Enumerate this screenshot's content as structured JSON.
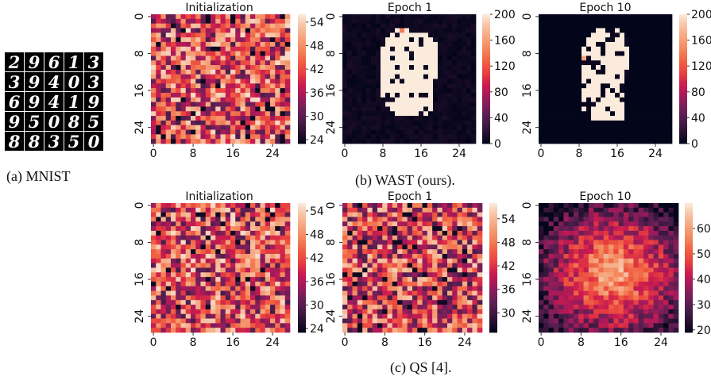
{
  "figure": {
    "captions": {
      "a": "(a) MNIST",
      "b": "(b) WAST (ours).",
      "c": "(c) QS [4]."
    },
    "mnist_digits": [
      [
        "2",
        "9",
        "6",
        "1",
        "3"
      ],
      [
        "3",
        "9",
        "4",
        "0",
        "3"
      ],
      [
        "6",
        "9",
        "4",
        "1",
        "9"
      ],
      [
        "9",
        "5",
        "0",
        "8",
        "5"
      ],
      [
        "8",
        "8",
        "3",
        "5",
        "0"
      ]
    ]
  },
  "colors": {
    "colormap": "rocket",
    "stops": [
      "#03051a",
      "#2b1131",
      "#4c1d4b",
      "#711f57",
      "#a11a5b",
      "#cb1b4f",
      "#e83f3f",
      "#f06043",
      "#f4875e",
      "#f6a47c",
      "#f7c2a4",
      "#faebdd"
    ]
  },
  "chart_data": [
    {
      "id": "wast-initialization",
      "type": "heatmap",
      "title": "Initialization",
      "pattern": "uniform-random",
      "grid": [
        28,
        28
      ],
      "value_range": [
        24,
        55
      ],
      "seed": 11,
      "yticks": [
        "0",
        "8",
        "16",
        "24"
      ],
      "xticks": [
        "0",
        "8",
        "16",
        "24"
      ],
      "colorbar": {
        "min": 23,
        "max": 56,
        "ticks": [
          24,
          30,
          36,
          42,
          48,
          54
        ]
      }
    },
    {
      "id": "wast-epoch1",
      "type": "heatmap",
      "title": "Epoch 1",
      "pattern": "digit-mask",
      "blob_min": 2,
      "blob_max": 200,
      "seed": 23,
      "hot_cells": [
        [
          3,
          12,
          140
        ]
      ],
      "yticks": [
        "0",
        "8",
        "16",
        "24"
      ],
      "xticks": [
        "0",
        "8",
        "16",
        "24"
      ],
      "colorbar": {
        "min": 0,
        "max": 200,
        "ticks": [
          0,
          40,
          80,
          120,
          160,
          200
        ]
      }
    },
    {
      "id": "wast-epoch10",
      "type": "heatmap",
      "title": "Epoch 10",
      "pattern": "digit-mask-sparse",
      "blob_min": 0,
      "blob_max": 200,
      "seed": 37,
      "hot_cells": [
        [
          9,
          9,
          165
        ]
      ],
      "yticks": [
        "0",
        "8",
        "16",
        "24"
      ],
      "xticks": [
        "0",
        "8",
        "16",
        "24"
      ],
      "colorbar": {
        "min": 0,
        "max": 200,
        "ticks": [
          0,
          40,
          80,
          120,
          160,
          200
        ]
      }
    },
    {
      "id": "qs-initialization",
      "type": "heatmap",
      "title": "Initialization",
      "pattern": "uniform-random",
      "grid": [
        28,
        28
      ],
      "value_range": [
        24,
        55
      ],
      "seed": 51,
      "yticks": [
        "0",
        "8",
        "16",
        "24"
      ],
      "xticks": [
        "0",
        "8",
        "16",
        "24"
      ],
      "colorbar": {
        "min": 23,
        "max": 56,
        "ticks": [
          24,
          30,
          36,
          42,
          48,
          54
        ]
      }
    },
    {
      "id": "qs-epoch1",
      "type": "heatmap",
      "title": "Epoch 1",
      "pattern": "uniform-random",
      "grid": [
        28,
        28
      ],
      "value_range": [
        26,
        56
      ],
      "seed": 67,
      "yticks": [
        "0",
        "8",
        "16",
        "24"
      ],
      "xticks": [
        "0",
        "8",
        "16",
        "24"
      ],
      "colorbar": {
        "min": 25,
        "max": 58,
        "ticks": [
          30,
          36,
          42,
          48,
          54
        ]
      }
    },
    {
      "id": "qs-epoch10",
      "type": "heatmap",
      "title": "Epoch 10",
      "pattern": "radial",
      "value_range": [
        19,
        70
      ],
      "seed": 79,
      "yticks": [
        "0",
        "8",
        "16",
        "24"
      ],
      "xticks": [
        "0",
        "8",
        "16",
        "24"
      ],
      "colorbar": {
        "min": 19,
        "max": 70,
        "ticks": [
          20,
          30,
          40,
          50,
          60
        ]
      }
    }
  ]
}
